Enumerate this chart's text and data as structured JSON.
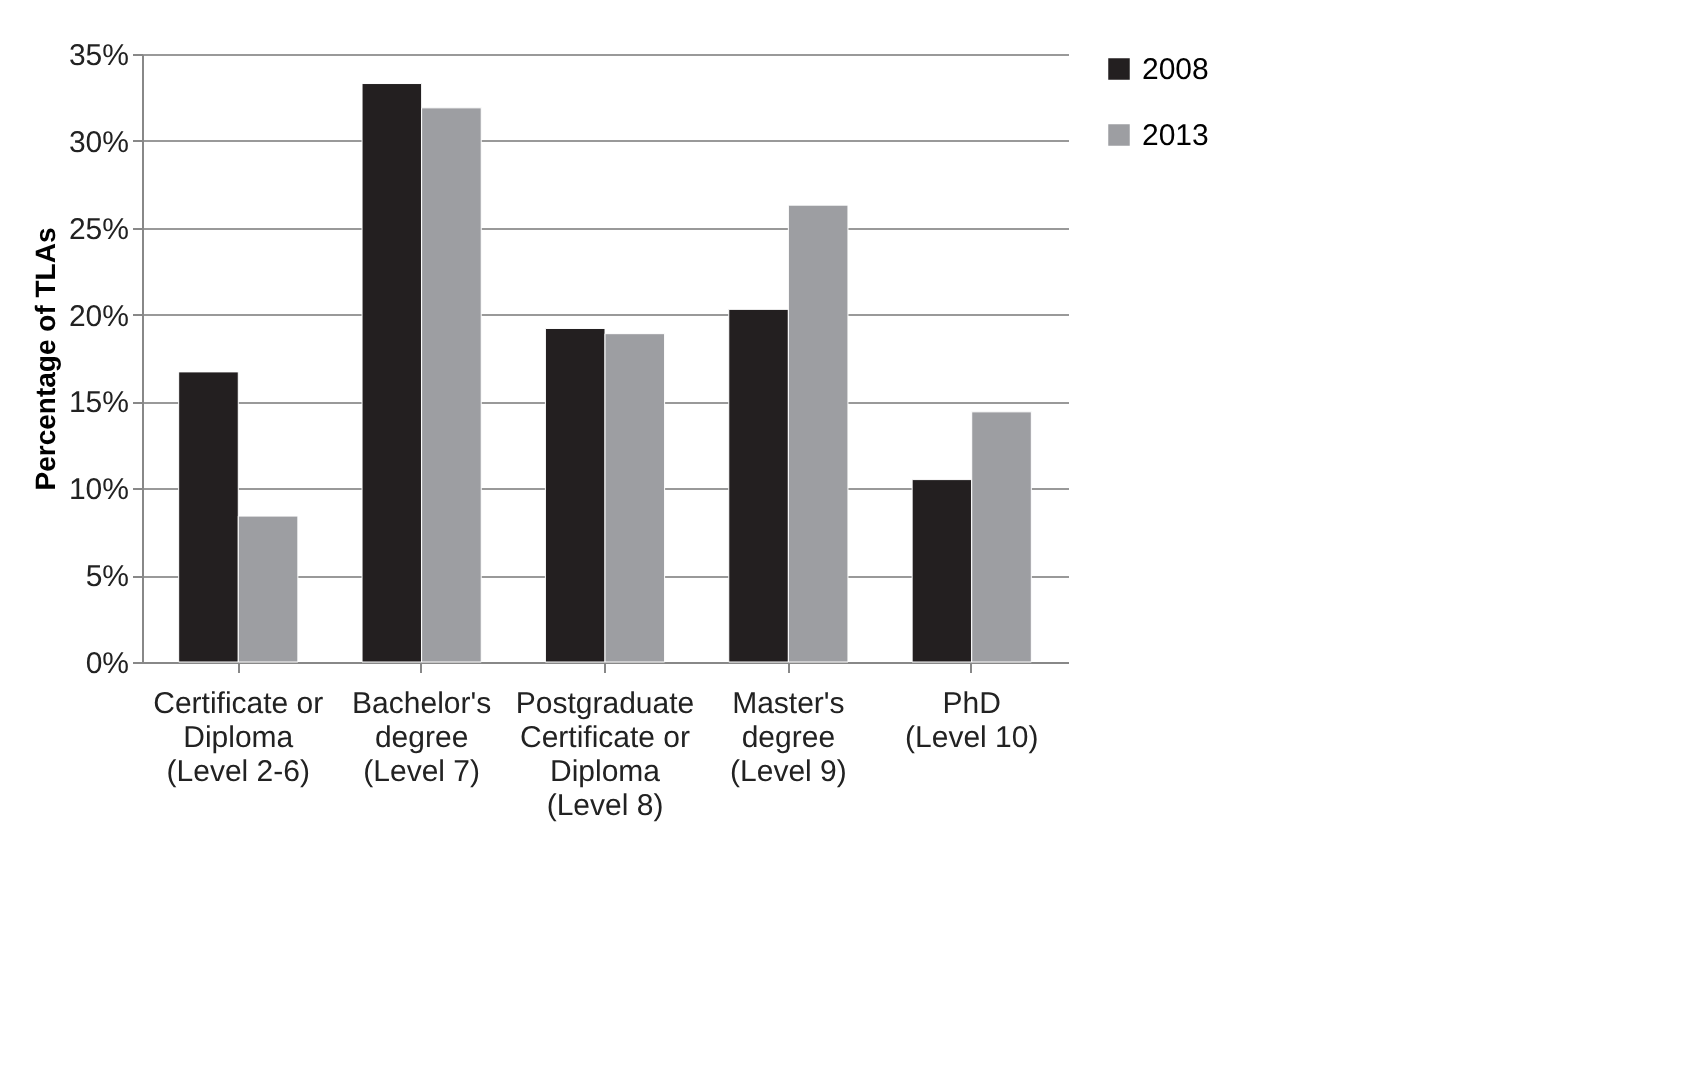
{
  "chart_data": {
    "type": "bar",
    "ylabel": "Percentage of TLAs",
    "categories": [
      "Certificate or\nDiploma\n(Level 2-6)",
      "Bachelor's\ndegree\n(Level 7)",
      "Postgraduate\nCertificate or\nDiploma\n(Level 8)",
      "Master's\ndegree\n(Level 9)",
      "PhD\n(Level 10)"
    ],
    "series": [
      {
        "name": "2008",
        "color": "#231f20",
        "values": [
          16.7,
          33.3,
          19.2,
          20.3,
          10.5
        ]
      },
      {
        "name": "2013",
        "color": "#9d9ea2",
        "values": [
          8.4,
          31.9,
          18.9,
          26.3,
          14.4
        ]
      }
    ],
    "ylim": [
      0,
      35
    ],
    "yticks": [
      {
        "value": 0,
        "label": "0%"
      },
      {
        "value": 5,
        "label": "5%"
      },
      {
        "value": 10,
        "label": "10%"
      },
      {
        "value": 15,
        "label": "15%"
      },
      {
        "value": 20,
        "label": "20%"
      },
      {
        "value": 25,
        "label": "25%"
      },
      {
        "value": 30,
        "label": "30%"
      },
      {
        "value": 35,
        "label": "35%"
      }
    ],
    "grid": "y",
    "legend": "right"
  }
}
